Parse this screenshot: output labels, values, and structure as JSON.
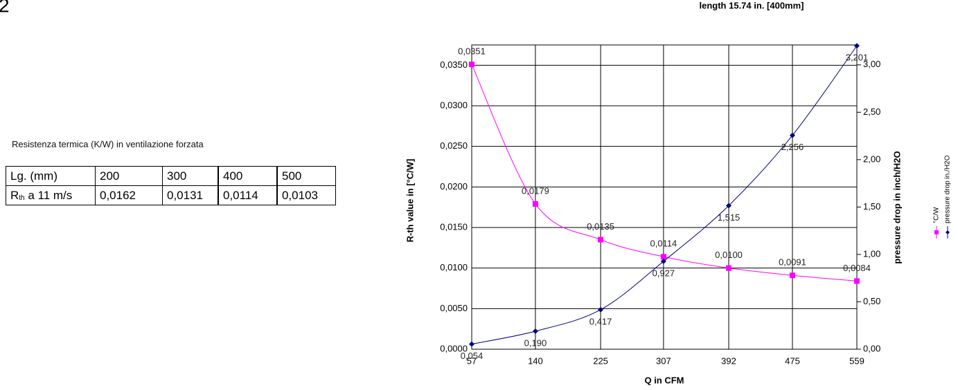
{
  "page_number": "2",
  "subtitle": "length 15.74 in. [400mm]",
  "caption": "Resistenza termica (K/W) in ventilazione forzata",
  "table": {
    "rows": [
      [
        "Lg. (mm)",
        "200",
        "300",
        "400",
        "500"
      ],
      [
        {
          "main": "R",
          "sub": "th",
          "rest": " a 11 m/s"
        },
        "0,0162",
        "0,0131",
        "0,0114",
        "0,0103"
      ]
    ]
  },
  "chart_data": {
    "type": "line",
    "x_label": "Q in CFM",
    "y_label": "R-th value in [°C/W]",
    "y2_label": "pressure drop in inch/H2O",
    "x": [
      57,
      140,
      225,
      307,
      392,
      475,
      559
    ],
    "xlim": [
      57,
      559
    ],
    "xticks": [
      57,
      140,
      225,
      307,
      392,
      475,
      559
    ],
    "ylim": [
      0,
      0.0375
    ],
    "yticks": [
      {
        "value": 0,
        "label": "0,0000"
      },
      {
        "value": 0.005,
        "label": "0,0050"
      },
      {
        "value": 0.01,
        "label": "0,0100"
      },
      {
        "value": 0.015,
        "label": "0,0150"
      },
      {
        "value": 0.02,
        "label": "0,0200"
      },
      {
        "value": 0.025,
        "label": "0,0250"
      },
      {
        "value": 0.03,
        "label": "0,0300"
      },
      {
        "value": 0.035,
        "label": "0,0350"
      }
    ],
    "y2lim": [
      0,
      3.21
    ],
    "y2ticks": [
      {
        "value": 0,
        "label": "0,00"
      },
      {
        "value": 0.5,
        "label": "0,50"
      },
      {
        "value": 1,
        "label": "1,00"
      },
      {
        "value": 1.5,
        "label": "1,50"
      },
      {
        "value": 2,
        "label": "2,00"
      },
      {
        "value": 2.5,
        "label": "2,50"
      },
      {
        "value": 3,
        "label": "3,00"
      }
    ],
    "grid": true,
    "series": [
      {
        "name": "°C/W",
        "color": "#ff00ff",
        "marker": "square",
        "values": [
          0.0351,
          0.0179,
          0.0135,
          0.0114,
          0.01,
          0.0091,
          0.0084
        ],
        "value_labels": [
          "0,0351",
          "0,0179",
          "0,0135",
          "0,0114",
          "0,0100",
          "0,0091",
          "0,0084"
        ]
      },
      {
        "name": "pressure drop in./H2O",
        "color": "#000080",
        "marker": "diamond",
        "axis": "y2",
        "values": [
          0.054,
          0.19,
          0.417,
          0.927,
          1.515,
          2.256,
          3.201
        ],
        "value_labels": [
          "0,054",
          "0,190",
          "0,417",
          "0,927",
          "1,515",
          "2,256",
          "3,201"
        ]
      }
    ]
  }
}
